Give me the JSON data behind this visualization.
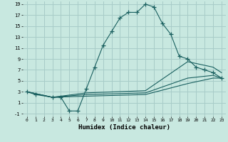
{
  "xlabel": "Humidex (Indice chaleur)",
  "bg_color": "#c8e8e0",
  "grid_color": "#a8ccc8",
  "line_color": "#1a6060",
  "xlim": [
    -0.5,
    23.5
  ],
  "ylim": [
    -1.5,
    19.5
  ],
  "xticks": [
    0,
    1,
    2,
    3,
    4,
    5,
    6,
    7,
    8,
    9,
    10,
    11,
    12,
    13,
    14,
    15,
    16,
    17,
    18,
    19,
    20,
    21,
    22,
    23
  ],
  "yticks": [
    -1,
    1,
    3,
    5,
    7,
    9,
    11,
    13,
    15,
    17,
    19
  ],
  "series": [
    {
      "x": [
        0,
        1,
        3,
        4,
        5,
        6,
        7,
        8,
        9,
        10,
        11,
        12,
        13,
        14,
        15,
        16,
        17,
        18,
        19,
        20,
        21,
        22,
        23
      ],
      "y": [
        3,
        2.5,
        2,
        2,
        -0.5,
        -0.5,
        3.5,
        7.5,
        11.5,
        14,
        16.5,
        17.5,
        17.5,
        19,
        18.5,
        15.5,
        13.5,
        9.5,
        9,
        7.5,
        7,
        6.5,
        5.5
      ],
      "marker": true
    },
    {
      "x": [
        0,
        3,
        7,
        14,
        19,
        22,
        23
      ],
      "y": [
        3,
        2,
        2.8,
        3.2,
        8.5,
        7.5,
        6.5
      ],
      "marker": false
    },
    {
      "x": [
        0,
        3,
        7,
        14,
        19,
        22,
        23
      ],
      "y": [
        3,
        2,
        2.5,
        2.8,
        5.5,
        6,
        5.5
      ],
      "marker": false
    },
    {
      "x": [
        0,
        3,
        7,
        14,
        19,
        22,
        23
      ],
      "y": [
        3,
        2,
        2.2,
        2.5,
        4.5,
        5.5,
        5.5
      ],
      "marker": false
    }
  ]
}
